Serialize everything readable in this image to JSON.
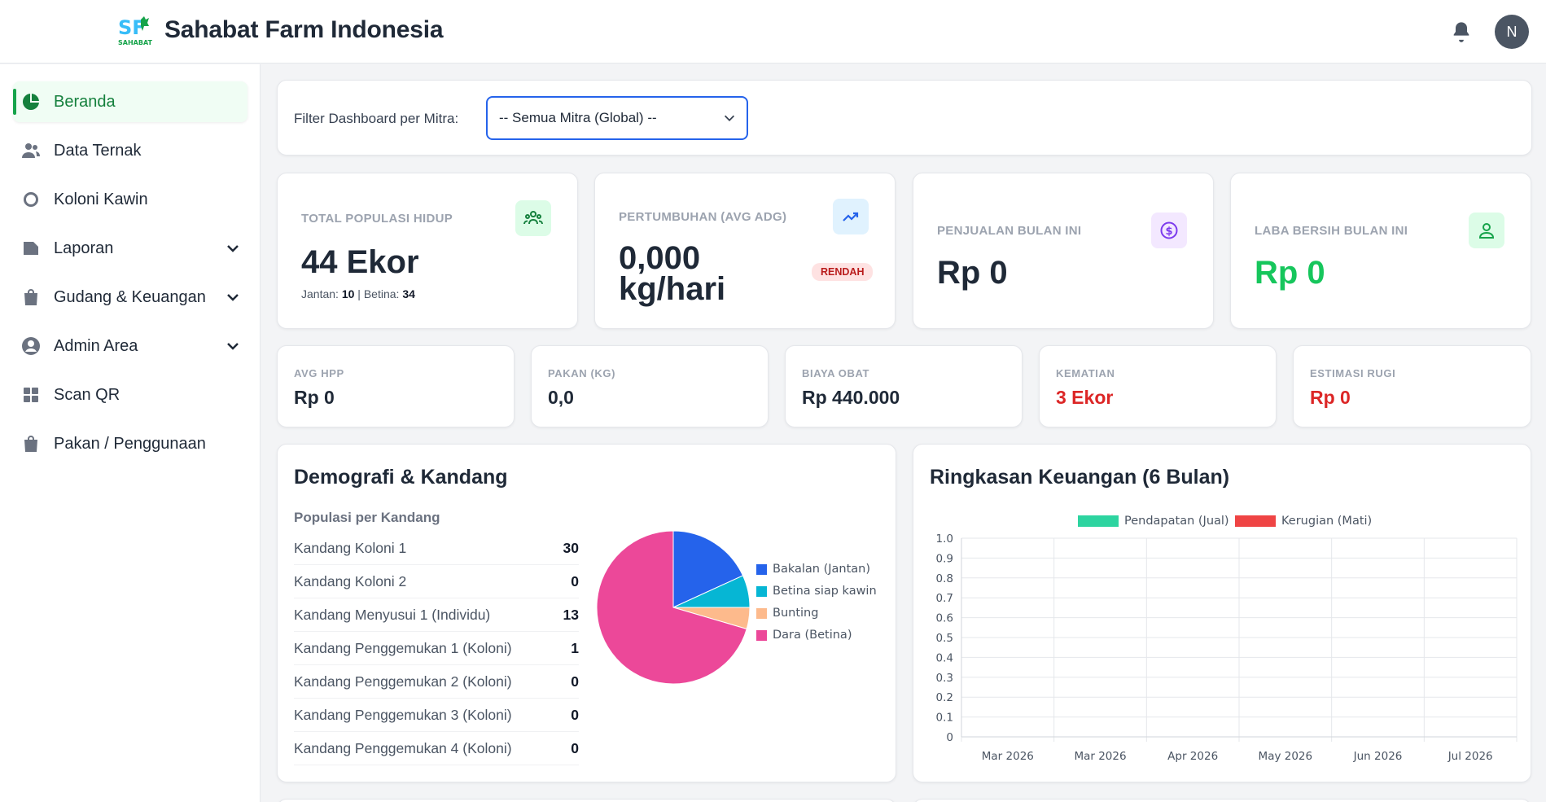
{
  "header": {
    "brand_title": "Sahabat Farm Indonesia",
    "logo_text": "SF",
    "logo_subtext": "SAHABAT",
    "avatar_initial": "N"
  },
  "sidebar": {
    "items": [
      {
        "label": "Beranda",
        "icon": "pie-chart-icon",
        "active": true,
        "has_submenu": false
      },
      {
        "label": "Data Ternak",
        "icon": "users-icon",
        "active": false,
        "has_submenu": false
      },
      {
        "label": "Koloni Kawin",
        "icon": "circle-icon",
        "active": false,
        "has_submenu": false
      },
      {
        "label": "Laporan",
        "icon": "folder-icon",
        "active": false,
        "has_submenu": true
      },
      {
        "label": "Gudang & Keuangan",
        "icon": "shopping-bag-icon",
        "active": false,
        "has_submenu": true
      },
      {
        "label": "Admin Area",
        "icon": "user-circle-icon",
        "active": false,
        "has_submenu": true
      },
      {
        "label": "Scan QR",
        "icon": "grid-icon",
        "active": false,
        "has_submenu": false
      },
      {
        "label": "Pakan / Penggunaan",
        "icon": "bag-icon",
        "active": false,
        "has_submenu": false
      }
    ]
  },
  "filter": {
    "label": "Filter Dashboard per Mitra:",
    "selected": "-- Semua Mitra (Global) --"
  },
  "stats": {
    "populasi": {
      "label": "TOTAL POPULASI HIDUP",
      "value": "44 Ekor",
      "jantan_label": "Jantan:",
      "jantan": "10",
      "separator": "|",
      "betina_label": "Betina:",
      "betina": "34"
    },
    "pertumbuhan": {
      "label": "PERTUMBUHAN (AVG ADG)",
      "value_line1": "0,000",
      "value_line2": "kg/hari",
      "badge": "RENDAH"
    },
    "penjualan": {
      "label": "PENJUALAN BULAN INI",
      "value": "Rp 0"
    },
    "laba": {
      "label": "LABA BERSIH BULAN INI",
      "value": "Rp 0"
    }
  },
  "mini_stats": [
    {
      "label": "AVG HPP",
      "value": "Rp 0",
      "color": "#1f2937"
    },
    {
      "label": "PAKAN (KG)",
      "value": "0,0",
      "color": "#1f2937"
    },
    {
      "label": "BIAYA OBAT",
      "value": "Rp 440.000",
      "color": "#1f2937"
    },
    {
      "label": "KEMATIAN",
      "value": "3 Ekor",
      "color": "#dc2626"
    },
    {
      "label": "ESTIMASI RUGI",
      "value": "Rp 0",
      "color": "#dc2626"
    }
  ],
  "demografi": {
    "title": "Demografi & Kandang",
    "subtitle": "Populasi per Kandang",
    "kandang": [
      {
        "name": "Kandang Koloni 1",
        "value": "30"
      },
      {
        "name": "Kandang Koloni 2",
        "value": "0"
      },
      {
        "name": "Kandang Menyusui 1 (Individu)",
        "value": "13"
      },
      {
        "name": "Kandang Penggemukan 1 (Koloni)",
        "value": "1"
      },
      {
        "name": "Kandang Penggemukan 2 (Koloni)",
        "value": "0"
      },
      {
        "name": "Kandang Penggemukan 3 (Koloni)",
        "value": "0"
      },
      {
        "name": "Kandang Penggemukan 4 (Koloni)",
        "value": "0"
      }
    ]
  },
  "keuangan": {
    "title": "Ringkasan Keuangan (6 Bulan)"
  },
  "chart_data": [
    {
      "type": "pie",
      "title": "",
      "slices": [
        {
          "label": "Bakalan (Jantan)",
          "value": 8,
          "color": "#2563eb"
        },
        {
          "label": "Betina siap kawin",
          "value": 3,
          "color": "#06b6d4"
        },
        {
          "label": "Bunting",
          "value": 2,
          "color": "#fdba8c"
        },
        {
          "label": "Dara (Betina)",
          "value": 31,
          "color": "#ec4899"
        }
      ],
      "legend_position": "right"
    },
    {
      "type": "bar",
      "title": "",
      "categories": [
        "Mar 2026",
        "Mar 2026",
        "Apr 2026",
        "May 2026",
        "Jun 2026",
        "Jul 2026"
      ],
      "series": [
        {
          "name": "Pendapatan (Jual)",
          "values": [
            0,
            0,
            0,
            0,
            0,
            0
          ],
          "color": "#2dd4a0"
        },
        {
          "name": "Kerugian (Mati)",
          "values": [
            0,
            0,
            0,
            0,
            0,
            0
          ],
          "color": "#ef4444"
        }
      ],
      "yticks": [
        "1.0",
        "0.9",
        "0.8",
        "0.7",
        "0.6",
        "0.5",
        "0.4",
        "0.3",
        "0.2",
        "0.1",
        "0"
      ],
      "ylim": [
        0,
        1
      ],
      "grid": true,
      "legend_position": "top"
    }
  ]
}
